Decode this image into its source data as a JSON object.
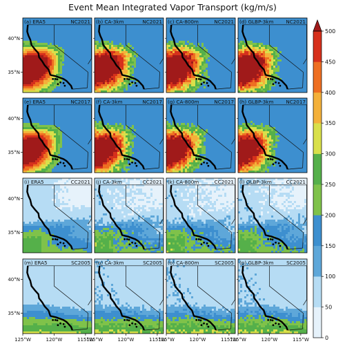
{
  "chart_data": {
    "type": "heatmap",
    "title": "Event Mean Integrated Vapor Transport",
    "units": "(kg/m/s)",
    "columns": [
      "ERA5",
      "CA-3km",
      "CA-800m",
      "GLBP-3km"
    ],
    "rows": [
      {
        "event": "NC2021",
        "panels": [
          {
            "letter": "(a)",
            "model": "ERA5",
            "event": "NC2021"
          },
          {
            "letter": "(b)",
            "model": "CA-3km",
            "event": "NC2021"
          },
          {
            "letter": "(c)",
            "model": "CA-800m",
            "event": "NC2021"
          },
          {
            "letter": "(d)",
            "model": "GLBP-3km",
            "event": "NC2021"
          }
        ]
      },
      {
        "event": "NC2017",
        "panels": [
          {
            "letter": "(e)",
            "model": "ERA5",
            "event": "NC2017"
          },
          {
            "letter": "(f)",
            "model": "CA-3km",
            "event": "NC2017"
          },
          {
            "letter": "(g)",
            "model": "CA-800m",
            "event": "NC2017"
          },
          {
            "letter": "(h)",
            "model": "GLBP-3km",
            "event": "NC2017"
          }
        ]
      },
      {
        "event": "CC2021",
        "panels": [
          {
            "letter": "(i)",
            "model": "ERA5",
            "event": "CC2021"
          },
          {
            "letter": "(j)",
            "model": "CA-3km",
            "event": "CC2021"
          },
          {
            "letter": "(k)",
            "model": "CA-800m",
            "event": "CC2021"
          },
          {
            "letter": "(l)",
            "model": "GLBP-3km",
            "event": "CC2021"
          }
        ]
      },
      {
        "event": "SC2005",
        "panels": [
          {
            "letter": "(m)",
            "model": "ERA5",
            "event": "SC2005"
          },
          {
            "letter": "(n)",
            "model": "CA-3km",
            "event": "SC2005"
          },
          {
            "letter": "(o)",
            "model": "CA-800m",
            "event": "SC2005"
          },
          {
            "letter": "(p)",
            "model": "GLBP-3km",
            "event": "SC2005"
          }
        ]
      }
    ],
    "lat_ticks": [
      "40°N",
      "35°N"
    ],
    "lon_ticks": [
      "125°W",
      "120°W",
      "115°W"
    ],
    "lon_range": [
      -125,
      -114
    ],
    "lat_range": [
      32,
      43
    ],
    "colorbar": {
      "levels": [
        0,
        50,
        100,
        150,
        200,
        250,
        300,
        350,
        400,
        450,
        500
      ],
      "tick_labels": [
        "0",
        "50",
        "100",
        "150",
        "200",
        "250",
        "300",
        "350",
        "400",
        "450",
        "500"
      ],
      "colors": [
        "#e6f2fb",
        "#b6dcf4",
        "#5ea7d9",
        "#3d8fcf",
        "#7fc24a",
        "#55b04a",
        "#d9e04a",
        "#f4b13a",
        "#ee6f22",
        "#d6301c",
        "#a01a1a"
      ],
      "extend": "max"
    },
    "row_peak_values": [
      470,
      450,
      230,
      300
    ]
  }
}
